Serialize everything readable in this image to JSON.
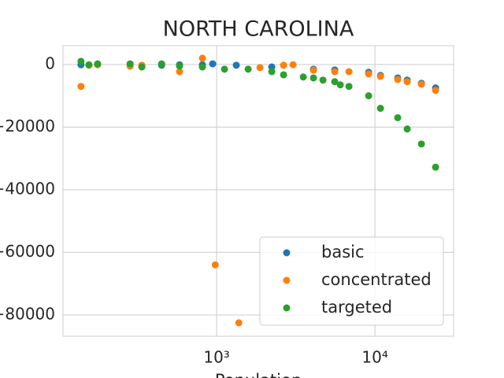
{
  "chart_data": {
    "type": "scatter",
    "title": "NORTH CAROLINA",
    "x_label": "Population",
    "log_x": true,
    "grid": true,
    "legend_position": "lower right",
    "xlim": [
      107,
      31400
    ],
    "ylim": [
      -86800,
      6000
    ],
    "xticks": [
      {
        "value": 1000,
        "label": "10³"
      },
      {
        "value": 10000,
        "label": "10⁴"
      }
    ],
    "yticks": [
      {
        "value": 0,
        "label": "0"
      },
      {
        "value": -20000,
        "label": "−20000"
      },
      {
        "value": -40000,
        "label": "−40000"
      },
      {
        "value": -60000,
        "label": "−60000"
      },
      {
        "value": -80000,
        "label": "−80000"
      }
    ],
    "series": [
      {
        "name": "basic",
        "color": "#1f77b4",
        "x": [
          139,
          284,
          449,
          583,
          813,
          944,
          1331,
          2230,
          4090,
          5574,
          9120,
          10840,
          13930,
          15990,
          19660,
          24170
        ],
        "values": [
          -100,
          -500,
          -250,
          -100,
          -100,
          200,
          -250,
          -800,
          -1500,
          -1760,
          -2500,
          -3500,
          -4300,
          -5000,
          -6000,
          -7500
        ]
      },
      {
        "name": "concentrated",
        "color": "#ff7f0e",
        "x": [
          139,
          156,
          177,
          284,
          337,
          583,
          813,
          980,
          1380,
          1878,
          2648,
          3040,
          4090,
          5574,
          6853,
          9120,
          10840,
          13930,
          15990,
          19660,
          24170
        ],
        "values": [
          -7000,
          -250,
          -100,
          -500,
          -250,
          -2300,
          2000,
          -64000,
          -82500,
          -1000,
          -250,
          -100,
          -1800,
          -2300,
          -2300,
          -3000,
          -3800,
          -4800,
          -5500,
          -6300,
          -8300
        ]
      },
      {
        "name": "targeted",
        "color": "#2ca02c",
        "x": [
          139,
          156,
          177,
          284,
          337,
          449,
          583,
          813,
          1121,
          1581,
          2230,
          2648,
          3526,
          4090,
          4695,
          5574,
          6040,
          6853,
          9120,
          10840,
          13930,
          15990,
          19660,
          24170
        ],
        "values": [
          1000,
          -100,
          200,
          200,
          -800,
          200,
          -500,
          -800,
          -1500,
          -1500,
          -2300,
          -3300,
          -4000,
          -4300,
          -5000,
          -5500,
          -6500,
          -7000,
          -10000,
          -14000,
          -17000,
          -20600,
          -25400,
          -32800
        ]
      }
    ]
  }
}
